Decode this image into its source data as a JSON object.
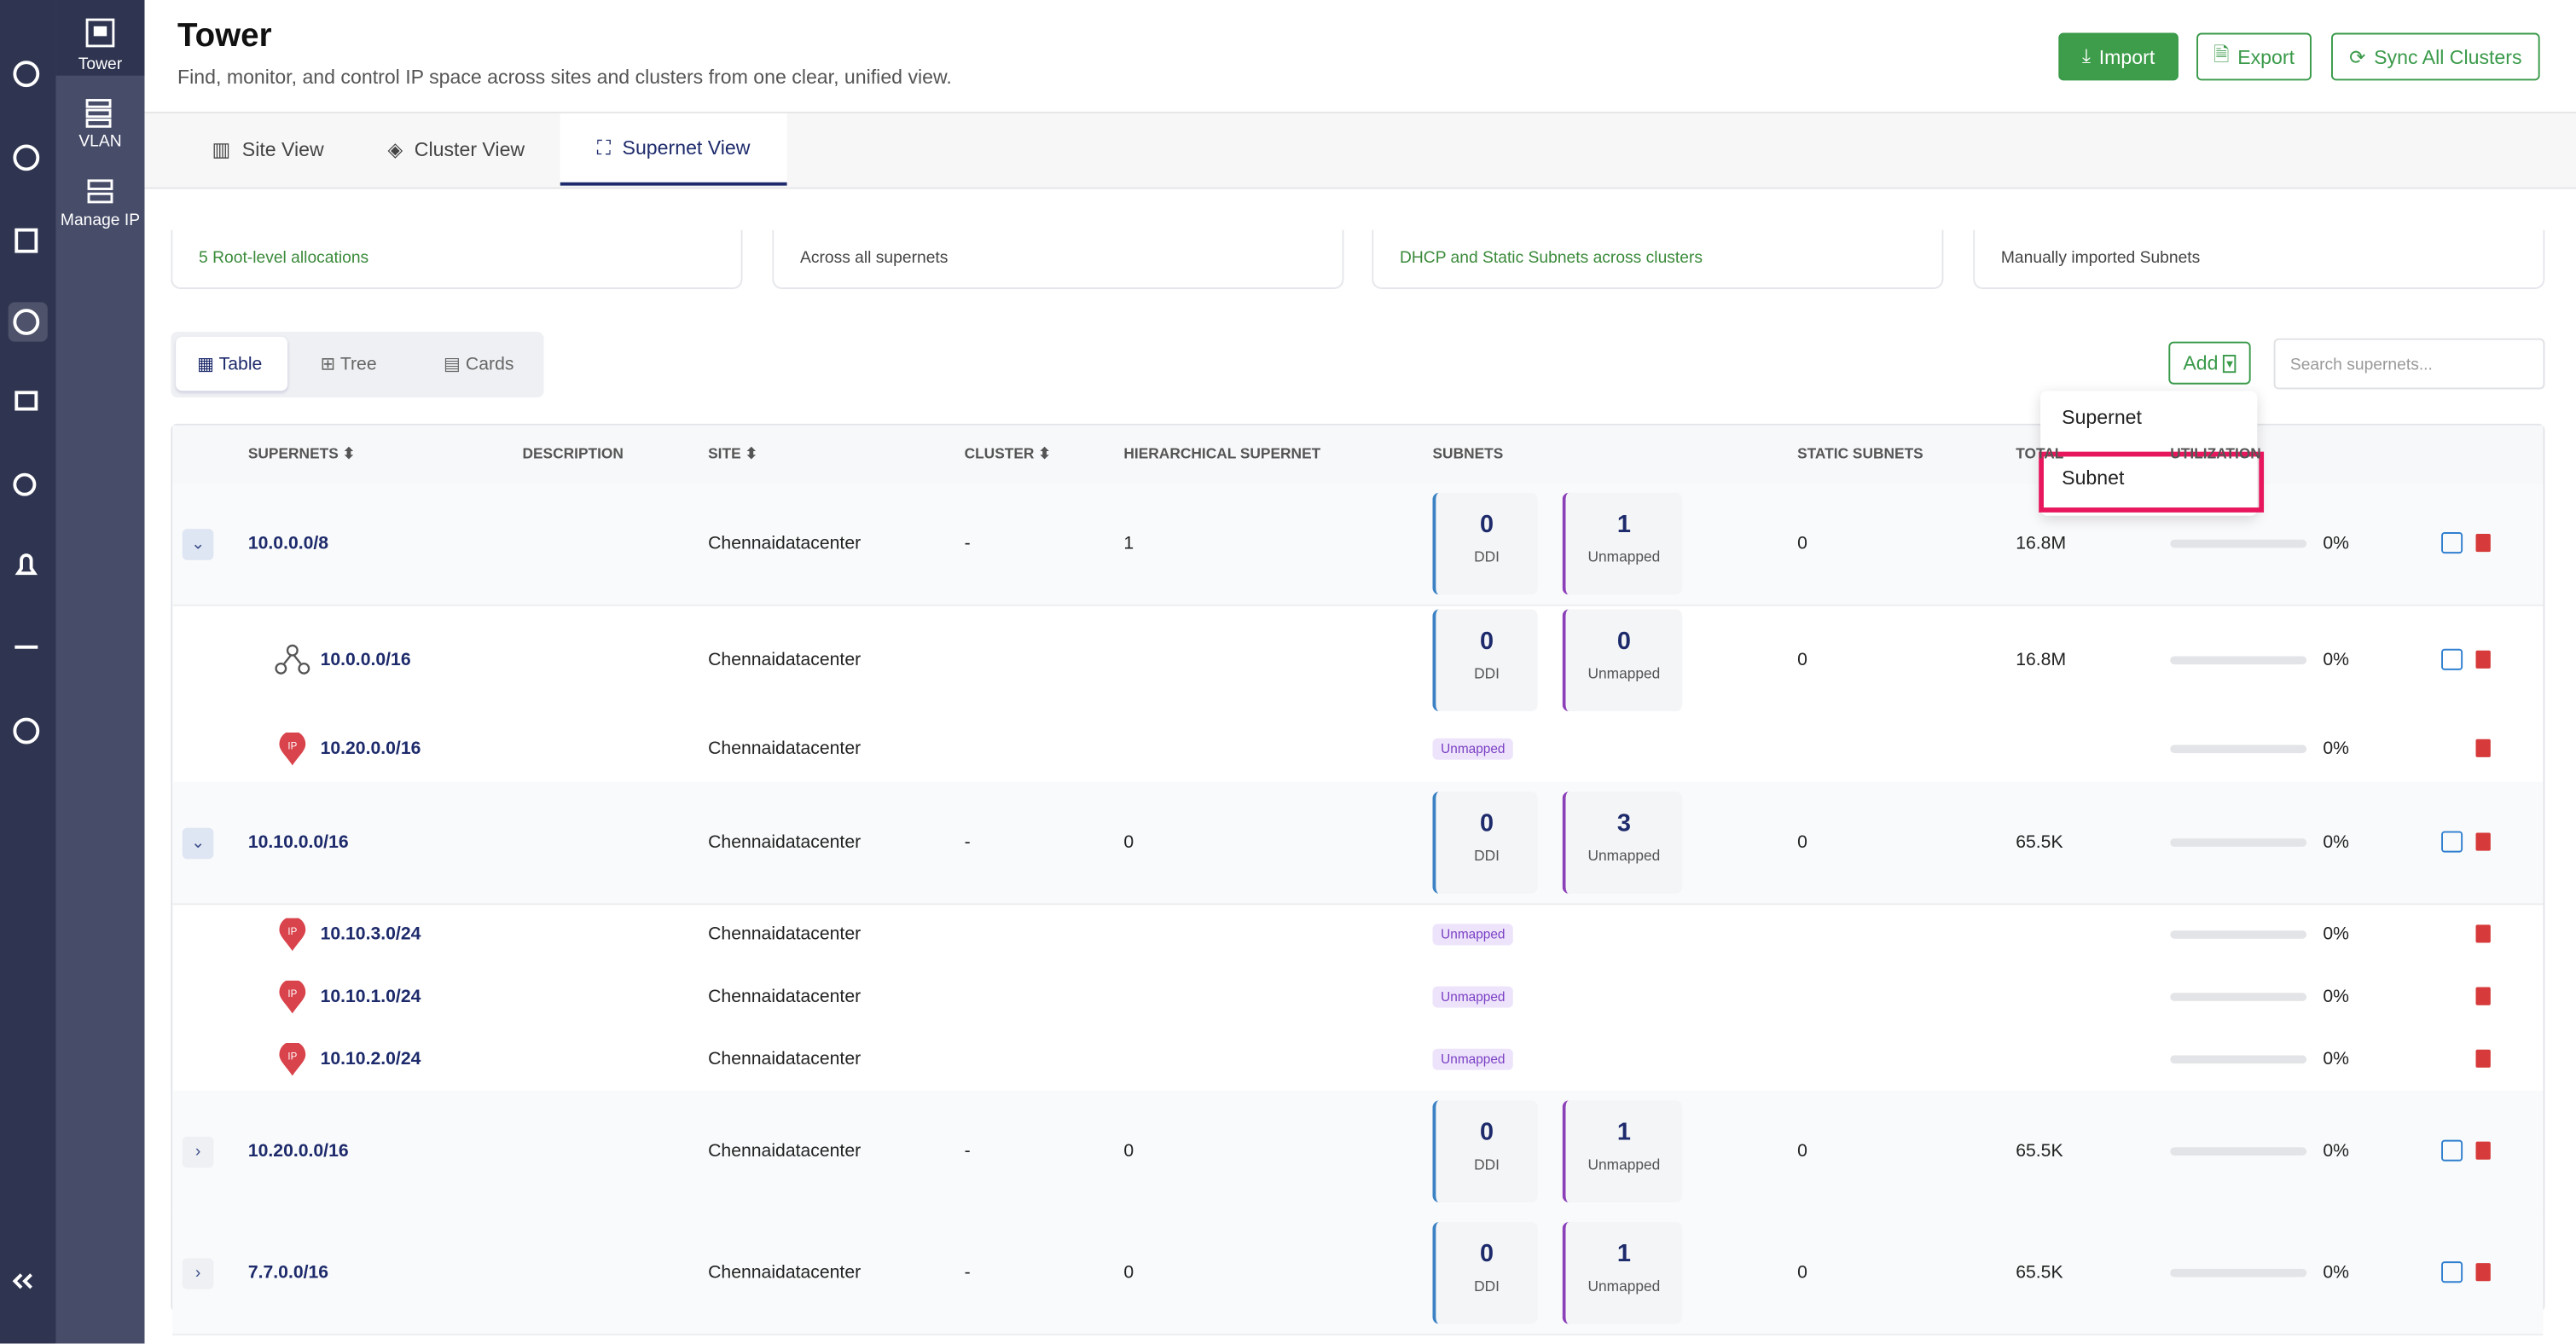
{
  "sidebar": {
    "items": [
      "Tower",
      "VLAN",
      "Manage IP"
    ]
  },
  "header": {
    "title": "Tower",
    "subtitle": "Find, monitor, and control IP space across sites and clusters from one clear, unified view.",
    "buttons": [
      "Import",
      "Export",
      "Sync All Clusters"
    ]
  },
  "tabs": [
    "Site View",
    "Cluster View",
    "Supernet View"
  ],
  "stat_cards": [
    "5 Root-level allocations",
    "Across all supernets",
    "DHCP and Static Subnets across clusters",
    "Manually imported Subnets"
  ],
  "view_toggle": [
    "Table",
    "Tree",
    "Cards"
  ],
  "toolbar": {
    "add": "Add",
    "search_placeholder": "Search supernets..."
  },
  "dropdown": [
    "Supernet",
    "Subnet"
  ],
  "table": {
    "columns": [
      "SUPERNETS",
      "DESCRIPTION",
      "SITE",
      "CLUSTER",
      "HIERARCHICAL SUPERNET",
      "SUBNETS",
      "STATIC SUBNETS",
      "TOTAL",
      "UTILIZATION"
    ],
    "labels": {
      "ddi": "DDI",
      "unmapped": "Unmapped"
    },
    "rows": [
      {
        "kind": "parent",
        "expanded": true,
        "supernet": "10.0.0.0/8",
        "site": "Chennaidatacenter",
        "cluster": "-",
        "hierarchical": "1",
        "ddi": "0",
        "unmapped": "1",
        "static": "0",
        "total": "16.8M",
        "utilization": "0%"
      },
      {
        "kind": "child-supernet",
        "supernet": "10.0.0.0/16",
        "site": "Chennaidatacenter",
        "ddi": "0",
        "unmapped": "0",
        "static": "0",
        "total": "16.8M",
        "utilization": "0%"
      },
      {
        "kind": "child-ip",
        "supernet": "10.20.0.0/16",
        "site": "Chennaidatacenter",
        "badge": "Unmapped",
        "utilization": "0%"
      },
      {
        "kind": "parent",
        "expanded": true,
        "supernet": "10.10.0.0/16",
        "site": "Chennaidatacenter",
        "cluster": "-",
        "hierarchical": "0",
        "ddi": "0",
        "unmapped": "3",
        "static": "0",
        "total": "65.5K",
        "utilization": "0%"
      },
      {
        "kind": "child-ip",
        "supernet": "10.10.3.0/24",
        "site": "Chennaidatacenter",
        "badge": "Unmapped",
        "utilization": "0%"
      },
      {
        "kind": "child-ip",
        "supernet": "10.10.1.0/24",
        "site": "Chennaidatacenter",
        "badge": "Unmapped",
        "utilization": "0%"
      },
      {
        "kind": "child-ip",
        "supernet": "10.10.2.0/24",
        "site": "Chennaidatacenter",
        "badge": "Unmapped",
        "utilization": "0%"
      },
      {
        "kind": "parent",
        "expanded": false,
        "supernet": "10.20.0.0/16",
        "site": "Chennaidatacenter",
        "cluster": "-",
        "hierarchical": "0",
        "ddi": "0",
        "unmapped": "1",
        "static": "0",
        "total": "65.5K",
        "utilization": "0%"
      },
      {
        "kind": "parent",
        "expanded": false,
        "supernet": "7.7.0.0/16",
        "site": "Chennaidatacenter",
        "cluster": "-",
        "hierarchical": "0",
        "ddi": "0",
        "unmapped": "1",
        "static": "0",
        "total": "65.5K",
        "utilization": "0%"
      }
    ]
  }
}
